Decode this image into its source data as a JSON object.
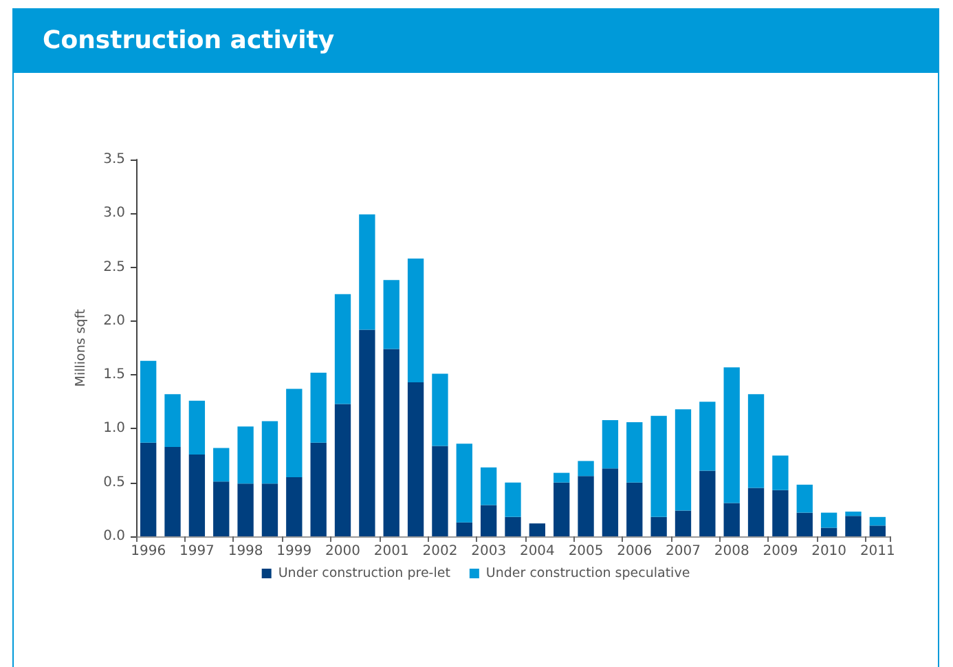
{
  "chart_data": {
    "type": "bar",
    "title": "Construction activity",
    "ylabel": "Millions sqft",
    "categories": [
      "1996",
      null,
      "1997",
      null,
      "1998",
      null,
      "1999",
      null,
      "2000",
      null,
      "2001",
      null,
      "2002",
      null,
      "2003",
      null,
      "2004",
      null,
      "2005",
      null,
      "2006",
      null,
      "2007",
      null,
      "2008",
      null,
      "2009",
      null,
      "2010",
      null,
      "2011"
    ],
    "series": [
      {
        "name": "Under construction pre-let",
        "color": "#003f7f",
        "values": [
          0.87,
          0.83,
          0.76,
          0.51,
          0.49,
          0.49,
          0.55,
          0.87,
          1.23,
          1.92,
          1.74,
          1.43,
          0.84,
          0.13,
          0.29,
          0.18,
          0.12,
          0.5,
          0.56,
          0.63,
          0.5,
          0.18,
          0.24,
          0.61,
          0.31,
          0.45,
          0.43,
          0.22,
          0.08,
          0.19,
          0.1
        ]
      },
      {
        "name": "Under construction speculative",
        "color": "#009ad9",
        "values": [
          0.76,
          0.49,
          0.5,
          0.31,
          0.53,
          0.58,
          0.82,
          0.65,
          1.02,
          1.07,
          0.64,
          1.15,
          0.67,
          0.73,
          0.35,
          0.32,
          0,
          0.09,
          0.14,
          0.45,
          0.56,
          0.94,
          0.94,
          0.64,
          1.26,
          0.87,
          0.32,
          0.26,
          0.14,
          0.04,
          0.08
        ]
      }
    ],
    "stacked": true,
    "ylim": [
      0,
      3.5
    ],
    "yticks": [
      {
        "value": 0,
        "label": "0.0"
      },
      0.5,
      {
        "value": 1,
        "label": "1.0"
      },
      1.5,
      {
        "value": 2,
        "label": "2.0"
      },
      2.5,
      {
        "value": 3,
        "label": "3.0"
      },
      3.5
    ],
    "grid": false,
    "legend": "bottom"
  }
}
